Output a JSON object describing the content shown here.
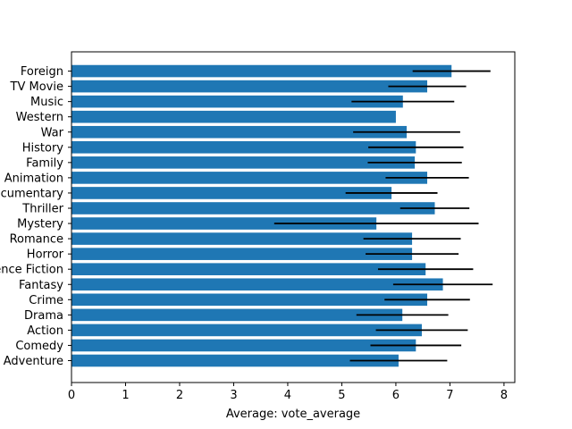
{
  "chart_data": {
    "type": "bar",
    "orientation": "horizontal",
    "xlabel": "Average: vote_average",
    "xlim": [
      0,
      8.2
    ],
    "xticks": [
      0,
      1,
      2,
      3,
      4,
      5,
      6,
      7,
      8
    ],
    "grid": false,
    "legend": "none",
    "bar_color": "#1f77b4",
    "errorbar_color": "#000000",
    "categories": [
      "Adventure",
      "Comedy",
      "Action",
      "Drama",
      "Crime",
      "Fantasy",
      "Science Fiction",
      "Horror",
      "Romance",
      "Mystery",
      "Thriller",
      "Documentary",
      "Animation",
      "Family",
      "History",
      "War",
      "Western",
      "Music",
      "TV Movie",
      "Foreign"
    ],
    "values": [
      6.05,
      6.37,
      6.48,
      6.12,
      6.58,
      6.87,
      6.55,
      6.3,
      6.3,
      5.64,
      6.72,
      5.92,
      6.58,
      6.35,
      6.37,
      6.2,
      6.0,
      6.13,
      6.58,
      7.03
    ],
    "errors": [
      0.9,
      0.84,
      0.85,
      0.85,
      0.79,
      0.92,
      0.88,
      0.86,
      0.9,
      1.89,
      0.64,
      0.85,
      0.77,
      0.87,
      0.88,
      0.99,
      0.0,
      0.95,
      0.72,
      0.72
    ]
  }
}
